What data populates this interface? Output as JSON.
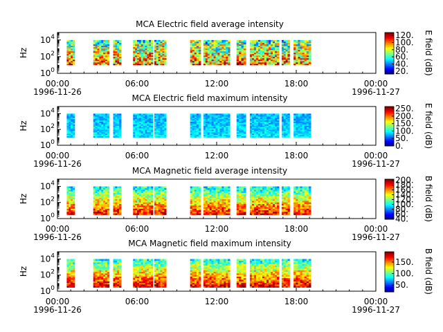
{
  "chart_data": [
    {
      "type": "heatmap",
      "title": "MCA  Electric field average intensity",
      "ylabel": "Hz",
      "y_ticks": [
        {
          "base": "10",
          "exp": "0"
        },
        {
          "base": "10",
          "exp": "2"
        },
        {
          "base": "10",
          "exp": "4"
        }
      ],
      "x_ticks": [
        "00:00",
        "06:00",
        "12:00",
        "18:00",
        "00:00"
      ],
      "x_start_date": "1996-11-26",
      "x_end_date": "1996-11-27",
      "colorbar_label": "E field (dB)",
      "colorbar_ticks": [
        "120.",
        "100.",
        "80.",
        "60.",
        "40.",
        "20."
      ],
      "colorbar_range": [
        12,
        128
      ],
      "coverage_hours": [
        [
          0.7,
          1.3
        ],
        [
          2.7,
          3.9
        ],
        [
          4.2,
          4.8
        ],
        [
          5.7,
          7.2
        ],
        [
          7.3,
          8.2
        ],
        [
          10.0,
          10.8
        ],
        [
          11.0,
          13.0
        ],
        [
          13.5,
          14.2
        ],
        [
          14.5,
          16.7
        ],
        [
          16.9,
          17.5
        ],
        [
          17.8,
          19.1
        ]
      ],
      "freq_range_hz": [
        10,
        10000
      ],
      "intensity_level": 0.55,
      "variability": 0.3
    },
    {
      "type": "heatmap",
      "title": "MCA  Electric field maximum intensity",
      "ylabel": "Hz",
      "y_ticks": [
        {
          "base": "10",
          "exp": "0"
        },
        {
          "base": "10",
          "exp": "2"
        },
        {
          "base": "10",
          "exp": "4"
        }
      ],
      "x_ticks": [
        "00:00",
        "06:00",
        "12:00",
        "18:00",
        "00:00"
      ],
      "x_start_date": "1996-11-26",
      "x_end_date": "1996-11-27",
      "colorbar_label": "E field (dB)",
      "colorbar_ticks": [
        "250.",
        "200.",
        "150.",
        "100.",
        "50.",
        "0."
      ],
      "colorbar_range": [
        0,
        265
      ],
      "coverage_hours": [
        [
          0.7,
          1.3
        ],
        [
          2.7,
          3.9
        ],
        [
          4.2,
          4.8
        ],
        [
          5.7,
          7.2
        ],
        [
          7.3,
          8.2
        ],
        [
          10.0,
          10.8
        ],
        [
          11.0,
          13.0
        ],
        [
          13.5,
          14.2
        ],
        [
          14.5,
          16.7
        ],
        [
          16.9,
          17.5
        ],
        [
          17.8,
          19.1
        ]
      ],
      "freq_range_hz": [
        10,
        10000
      ],
      "intensity_level": 0.35,
      "variability": 0.1
    },
    {
      "type": "heatmap",
      "title": "MCA  Magnetic field average intensity",
      "ylabel": "Hz",
      "y_ticks": [
        {
          "base": "10",
          "exp": "0"
        },
        {
          "base": "10",
          "exp": "2"
        },
        {
          "base": "10",
          "exp": "4"
        }
      ],
      "x_ticks": [
        "00:00",
        "06:00",
        "12:00",
        "18:00",
        "00:00"
      ],
      "x_start_date": "1996-11-26",
      "x_end_date": "1996-11-27",
      "colorbar_label": "B field (dB)",
      "colorbar_ticks": [
        "200.",
        "180.",
        "160.",
        "140.",
        "120.",
        "100.",
        "80.",
        "60.",
        "40."
      ],
      "colorbar_range": [
        38,
        205
      ],
      "coverage_hours": [
        [
          0.7,
          1.3
        ],
        [
          2.7,
          3.9
        ],
        [
          4.2,
          4.8
        ],
        [
          5.7,
          7.2
        ],
        [
          7.3,
          8.2
        ],
        [
          10.0,
          10.8
        ],
        [
          11.0,
          13.0
        ],
        [
          13.5,
          14.2
        ],
        [
          14.5,
          16.7
        ],
        [
          16.9,
          17.5
        ],
        [
          17.8,
          19.1
        ]
      ],
      "freq_range_hz": [
        3,
        10000
      ],
      "intensity_level": 0.55,
      "variability": 0.15
    },
    {
      "type": "heatmap",
      "title": "MCA  Magnetic field maximum intensity",
      "ylabel": "Hz",
      "y_ticks": [
        {
          "base": "10",
          "exp": "0"
        },
        {
          "base": "10",
          "exp": "2"
        },
        {
          "base": "10",
          "exp": "4"
        }
      ],
      "x_ticks": [
        "00:00",
        "06:00",
        "12:00",
        "18:00",
        "00:00"
      ],
      "x_start_date": "1996-11-26",
      "x_end_date": "1996-11-27",
      "colorbar_label": "B field (dB)",
      "colorbar_ticks": [
        "150.",
        "100.",
        "50."
      ],
      "colorbar_range": [
        20,
        195
      ],
      "coverage_hours": [
        [
          0.7,
          1.3
        ],
        [
          2.7,
          3.9
        ],
        [
          4.2,
          4.8
        ],
        [
          5.7,
          7.2
        ],
        [
          7.3,
          8.2
        ],
        [
          10.0,
          10.8
        ],
        [
          11.0,
          13.0
        ],
        [
          13.5,
          14.2
        ],
        [
          14.5,
          16.7
        ],
        [
          16.9,
          17.5
        ],
        [
          17.8,
          19.1
        ]
      ],
      "freq_range_hz": [
        3,
        10000
      ],
      "intensity_level": 0.58,
      "variability": 0.15
    }
  ]
}
